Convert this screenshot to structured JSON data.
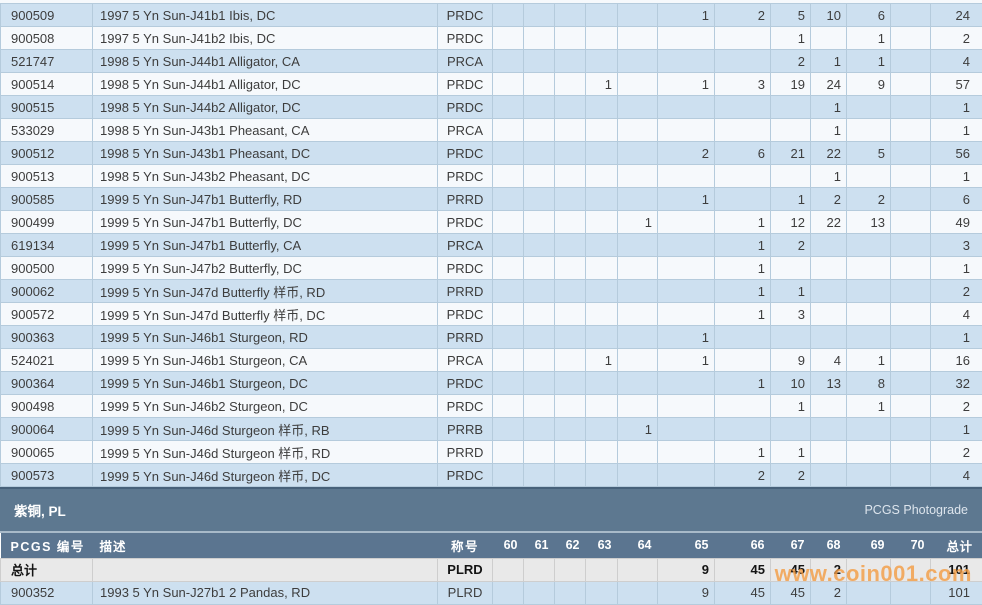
{
  "colors": {
    "row_blue": "#cde0f0",
    "row_white": "#f6f9fc",
    "grid_line": "#b5cbdc",
    "band_slate": "#5d7890",
    "header_slate": "#5b7590",
    "id_link": "#af6e52",
    "totals_row_bg": "#e9e9e9",
    "watermark_orange": "#f49c42"
  },
  "upper_table": {
    "rows": [
      {
        "id": "900509",
        "desc": "1997 5 Yn Sun-J41b1 Ibis, DC",
        "desig": "PRDC",
        "cells": [
          "",
          "",
          "",
          "",
          "",
          "1",
          "2",
          "5",
          "10",
          "6",
          "",
          "24"
        ]
      },
      {
        "id": "900508",
        "desc": "1997 5 Yn Sun-J41b2 Ibis, DC",
        "desig": "PRDC",
        "cells": [
          "",
          "",
          "",
          "",
          "",
          "",
          "",
          "1",
          "",
          "1",
          "",
          "2"
        ]
      },
      {
        "id": "521747",
        "desc": "1998 5 Yn Sun-J44b1 Alligator, CA",
        "desig": "PRCA",
        "cells": [
          "",
          "",
          "",
          "",
          "",
          "",
          "",
          "2",
          "1",
          "1",
          "",
          "4"
        ]
      },
      {
        "id": "900514",
        "desc": "1998 5 Yn Sun-J44b1 Alligator, DC",
        "desig": "PRDC",
        "cells": [
          "",
          "",
          "",
          "1",
          "",
          "1",
          "3",
          "19",
          "24",
          "9",
          "",
          "57"
        ]
      },
      {
        "id": "900515",
        "desc": "1998 5 Yn Sun-J44b2 Alligator, DC",
        "desig": "PRDC",
        "cells": [
          "",
          "",
          "",
          "",
          "",
          "",
          "",
          "",
          "1",
          "",
          "",
          "1"
        ]
      },
      {
        "id": "533029",
        "desc": "1998 5 Yn Sun-J43b1 Pheasant, CA",
        "desig": "PRCA",
        "cells": [
          "",
          "",
          "",
          "",
          "",
          "",
          "",
          "",
          "1",
          "",
          "",
          "1"
        ]
      },
      {
        "id": "900512",
        "desc": "1998 5 Yn Sun-J43b1 Pheasant, DC",
        "desig": "PRDC",
        "cells": [
          "",
          "",
          "",
          "",
          "",
          "2",
          "6",
          "21",
          "22",
          "5",
          "",
          "56"
        ]
      },
      {
        "id": "900513",
        "desc": "1998 5 Yn Sun-J43b2 Pheasant, DC",
        "desig": "PRDC",
        "cells": [
          "",
          "",
          "",
          "",
          "",
          "",
          "",
          "",
          "1",
          "",
          "",
          "1"
        ]
      },
      {
        "id": "900585",
        "desc": "1999 5 Yn Sun-J47b1 Butterfly, RD",
        "desig": "PRRD",
        "cells": [
          "",
          "",
          "",
          "",
          "",
          "1",
          "",
          "1",
          "2",
          "2",
          "",
          "6"
        ]
      },
      {
        "id": "900499",
        "desc": "1999 5 Yn Sun-J47b1 Butterfly, DC",
        "desig": "PRDC",
        "cells": [
          "",
          "",
          "",
          "",
          "1",
          "",
          "1",
          "12",
          "22",
          "13",
          "",
          "49"
        ]
      },
      {
        "id": "619134",
        "desc": "1999 5 Yn Sun-J47b1 Butterfly, CA",
        "desig": "PRCA",
        "cells": [
          "",
          "",
          "",
          "",
          "",
          "",
          "1",
          "2",
          "",
          "",
          "",
          "3"
        ]
      },
      {
        "id": "900500",
        "desc": "1999 5 Yn Sun-J47b2 Butterfly, DC",
        "desig": "PRDC",
        "cells": [
          "",
          "",
          "",
          "",
          "",
          "",
          "1",
          "",
          "",
          "",
          "",
          "1"
        ]
      },
      {
        "id": "900062",
        "desc": "1999 5 Yn Sun-J47d Butterfly 样币, RD",
        "desig": "PRRD",
        "cells": [
          "",
          "",
          "",
          "",
          "",
          "",
          "1",
          "1",
          "",
          "",
          "",
          "2"
        ]
      },
      {
        "id": "900572",
        "desc": "1999 5 Yn Sun-J47d Butterfly 样币, DC",
        "desig": "PRDC",
        "cells": [
          "",
          "",
          "",
          "",
          "",
          "",
          "1",
          "3",
          "",
          "",
          "",
          "4"
        ]
      },
      {
        "id": "900363",
        "desc": "1999 5 Yn Sun-J46b1 Sturgeon, RD",
        "desig": "PRRD",
        "cells": [
          "",
          "",
          "",
          "",
          "",
          "1",
          "",
          "",
          "",
          "",
          "",
          "1"
        ]
      },
      {
        "id": "524021",
        "desc": "1999 5 Yn Sun-J46b1 Sturgeon, CA",
        "desig": "PRCA",
        "cells": [
          "",
          "",
          "",
          "1",
          "",
          "1",
          "",
          "9",
          "4",
          "1",
          "",
          "16"
        ]
      },
      {
        "id": "900364",
        "desc": "1999 5 Yn Sun-J46b1 Sturgeon, DC",
        "desig": "PRDC",
        "cells": [
          "",
          "",
          "",
          "",
          "",
          "",
          "1",
          "10",
          "13",
          "8",
          "",
          "32"
        ]
      },
      {
        "id": "900498",
        "desc": "1999 5 Yn Sun-J46b2 Sturgeon, DC",
        "desig": "PRDC",
        "cells": [
          "",
          "",
          "",
          "",
          "",
          "",
          "",
          "1",
          "",
          "1",
          "",
          "2"
        ]
      },
      {
        "id": "900064",
        "desc": "1999 5 Yn Sun-J46d Sturgeon 样币, RB",
        "desig": "PRRB",
        "cells": [
          "",
          "",
          "",
          "",
          "1",
          "",
          "",
          "",
          "",
          "",
          "",
          "1"
        ]
      },
      {
        "id": "900065",
        "desc": "1999 5 Yn Sun-J46d Sturgeon 样币, RD",
        "desig": "PRRD",
        "cells": [
          "",
          "",
          "",
          "",
          "",
          "",
          "1",
          "1",
          "",
          "",
          "",
          "2"
        ]
      },
      {
        "id": "900573",
        "desc": "1999 5 Yn Sun-J46d Sturgeon 样币, DC",
        "desig": "PRDC",
        "cells": [
          "",
          "",
          "",
          "",
          "",
          "",
          "2",
          "2",
          "",
          "",
          "",
          "4"
        ]
      }
    ]
  },
  "section": {
    "title": "紫铜, PL",
    "photograde_label": "PCGS Photograde"
  },
  "lower_table": {
    "headers": {
      "id_label": "PCGS 编号",
      "desc_label": "描述",
      "desig_label": "称号",
      "grades": [
        "60",
        "61",
        "62",
        "63",
        "64",
        "65",
        "66",
        "67",
        "68",
        "69",
        "70"
      ],
      "total_label": "总计"
    },
    "totals_row": {
      "label": "总计",
      "desc": "",
      "desig": "PLRD",
      "cells": [
        "",
        "",
        "",
        "",
        "",
        "9",
        "45",
        "45",
        "2",
        "",
        "",
        "101"
      ]
    },
    "rows": [
      {
        "id": "900352",
        "desc": "1993 5 Yn Sun-J27b1 2 Pandas, RD",
        "desig": "PLRD",
        "cells": [
          "",
          "",
          "",
          "",
          "",
          "9",
          "45",
          "45",
          "2",
          "",
          "",
          "101"
        ]
      }
    ]
  },
  "watermark": "www.coin001.com"
}
